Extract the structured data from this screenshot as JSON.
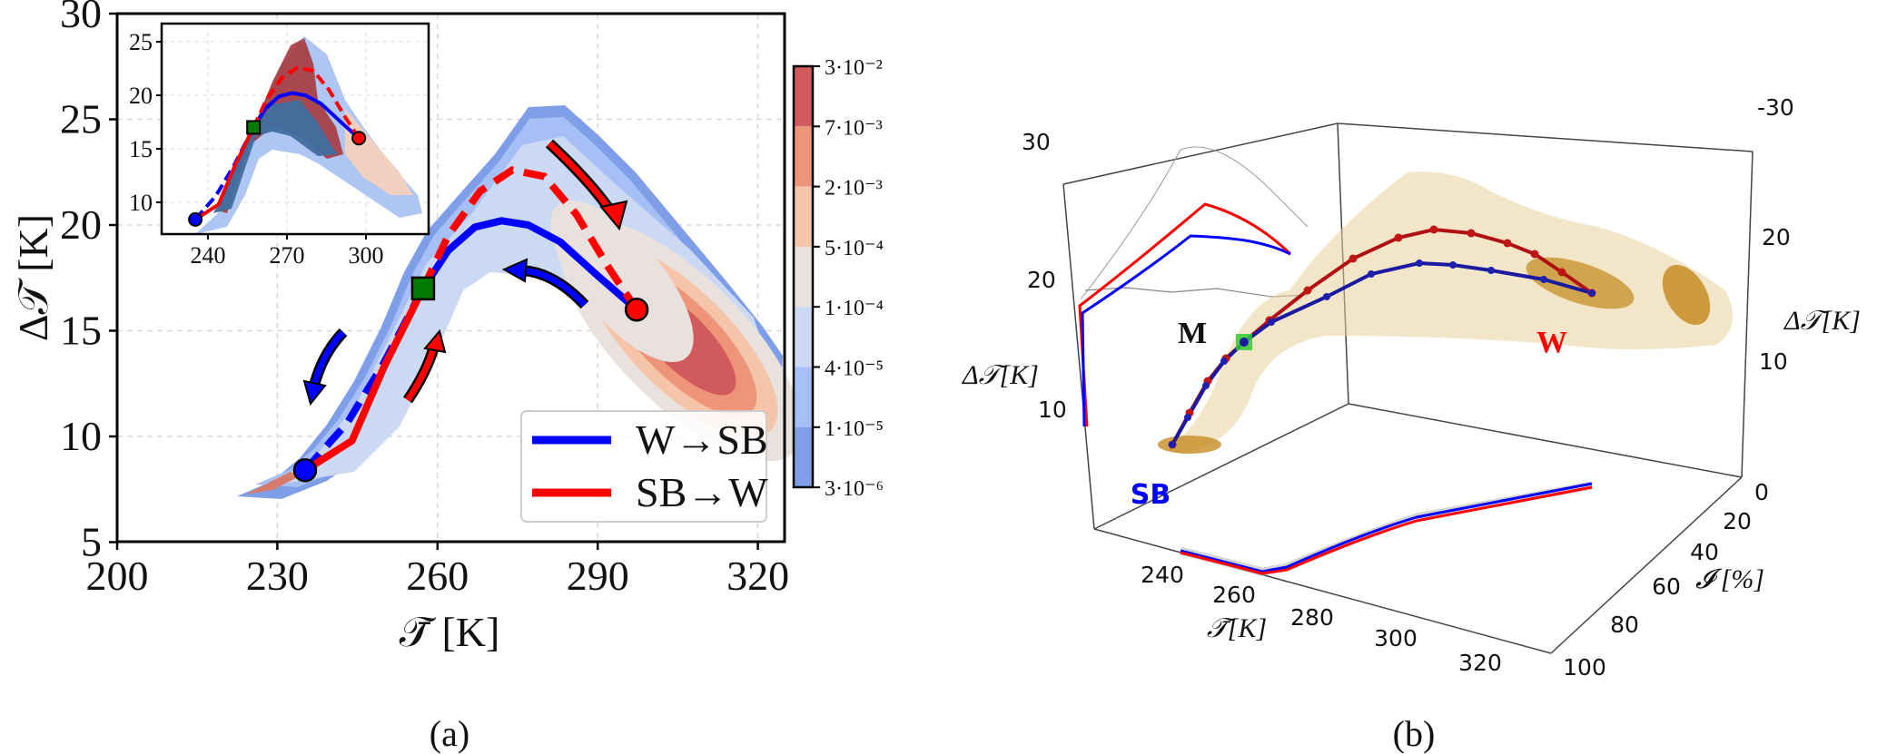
{
  "chart_data": [
    {
      "type": "line",
      "panel": "(a)",
      "xlabel": "𝒯̄ [K]",
      "ylabel": "Δ𝒯 [K]",
      "xlim": [
        200,
        325
      ],
      "ylim": [
        5,
        30
      ],
      "xticks": [
        "200",
        "230",
        "260",
        "290",
        "320"
      ],
      "yticks": [
        "5",
        "10",
        "15",
        "20",
        "25",
        "30"
      ],
      "grid": true,
      "legend_position": "bottom-right",
      "series": [
        {
          "name": "W→SB",
          "color": "#0000ff",
          "solid": [
            [
              297.3,
              16.0
            ],
            [
              290,
              17.6
            ],
            [
              283,
              19.2
            ],
            [
              277,
              20.0
            ],
            [
              272,
              20.2
            ],
            [
              267,
              19.9
            ],
            [
              262,
              18.8
            ],
            [
              257.3,
              17.0
            ]
          ],
          "dashed": [
            [
              257.3,
              17.0
            ],
            [
              250,
              13.5
            ],
            [
              243,
              10.6
            ],
            [
              238,
              9.2
            ],
            [
              235.2,
              8.4
            ]
          ]
        },
        {
          "name": "SB→W",
          "color": "#ff0000",
          "solid": [
            [
              235.2,
              8.4
            ],
            [
              239,
              9.0
            ],
            [
              244,
              9.8
            ],
            [
              250,
              13.3
            ],
            [
              257.3,
              17.0
            ]
          ],
          "dashed": [
            [
              257.3,
              17.0
            ],
            [
              262,
              19.5
            ],
            [
              268,
              21.6
            ],
            [
              274,
              22.6
            ],
            [
              280,
              22.3
            ],
            [
              286,
              20.5
            ],
            [
              292,
              18.0
            ],
            [
              297.3,
              16.0
            ]
          ]
        }
      ],
      "markers": [
        {
          "label": "SB",
          "shape": "circle",
          "color": "#0000ff",
          "x": 235.2,
          "y": 8.4
        },
        {
          "label": "M",
          "shape": "square",
          "color": "#007a00",
          "x": 257.3,
          "y": 17.0
        },
        {
          "label": "W",
          "shape": "circle",
          "color": "#ff0000",
          "x": 297.3,
          "y": 16.0
        }
      ],
      "colorbar": {
        "ticks": [
          "3·10⁻²",
          "7·10⁻³",
          "2·10⁻³",
          "5·10⁻⁴",
          "1·10⁻⁴",
          "4·10⁻⁵",
          "1·10⁻⁵",
          "3·10⁻⁶"
        ],
        "colors": [
          "#d05a5c",
          "#ee9479",
          "#f6c4a8",
          "#e8e1de",
          "#cbd9f3",
          "#a6c0f7",
          "#7f9ee8"
        ]
      },
      "caption": "(a)"
    },
    {
      "type": "line",
      "panel": "(a) inset",
      "xlim": [
        222,
        324
      ],
      "ylim": [
        7,
        26.7
      ],
      "xticks": [
        "240",
        "270",
        "300"
      ],
      "yticks": [
        "10",
        "15",
        "20",
        "25"
      ],
      "grid": true
    },
    {
      "type": "scatter",
      "panel": "(b)",
      "axes": {
        "x_label": "𝒯̄[K]",
        "x_ticks": [
          "240",
          "260",
          "280",
          "300",
          "320"
        ],
        "y_label": "𝓘 [%]",
        "y_ticks": [
          "0",
          "20",
          "40",
          "60",
          "80",
          "100"
        ],
        "z_label": "Δ𝒯[K]",
        "z_ticks_left": [
          "30",
          "20",
          "10"
        ],
        "z_ticks_right": [
          "-30",
          "20",
          "10"
        ]
      },
      "annotations": {
        "sb": "SB",
        "m": "M",
        "w": "W"
      },
      "colors": {
        "sb": "#0000ff",
        "w": "#ff0000",
        "m_marker": "#33cc33",
        "density": "#e9cf9a",
        "core": "#c58d25"
      },
      "caption": "(b)"
    }
  ]
}
